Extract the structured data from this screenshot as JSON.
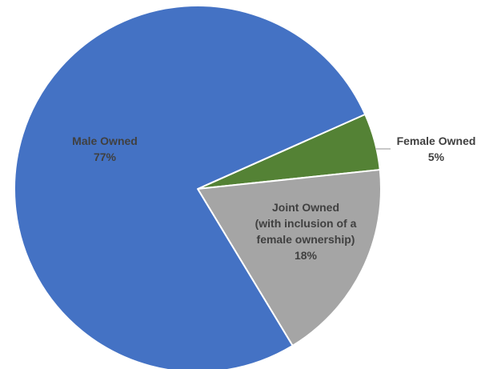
{
  "chart_data": {
    "type": "pie",
    "title": "",
    "slices": [
      {
        "name": "Male Owned",
        "label_lines": [
          "Male Owned"
        ],
        "value": 77,
        "value_label": "77%",
        "color": "#4472C4",
        "label_color": "#404040"
      },
      {
        "name": "Female Owned",
        "label_lines": [
          "Female Owned"
        ],
        "value": 5,
        "value_label": "5%",
        "color": "#548235",
        "label_color": "#404040"
      },
      {
        "name": "Joint Owned (with inclusion of a female ownership)",
        "label_lines": [
          "Joint Owned",
          "(with inclusion of a",
          "female ownership)"
        ],
        "value": 18,
        "value_label": "18%",
        "color": "#A5A5A5",
        "label_color": "#404040"
      }
    ],
    "legend": "none",
    "data_labels": "category and percentage",
    "start_angle_deg": 66,
    "border_color": "#FFFFFF"
  }
}
